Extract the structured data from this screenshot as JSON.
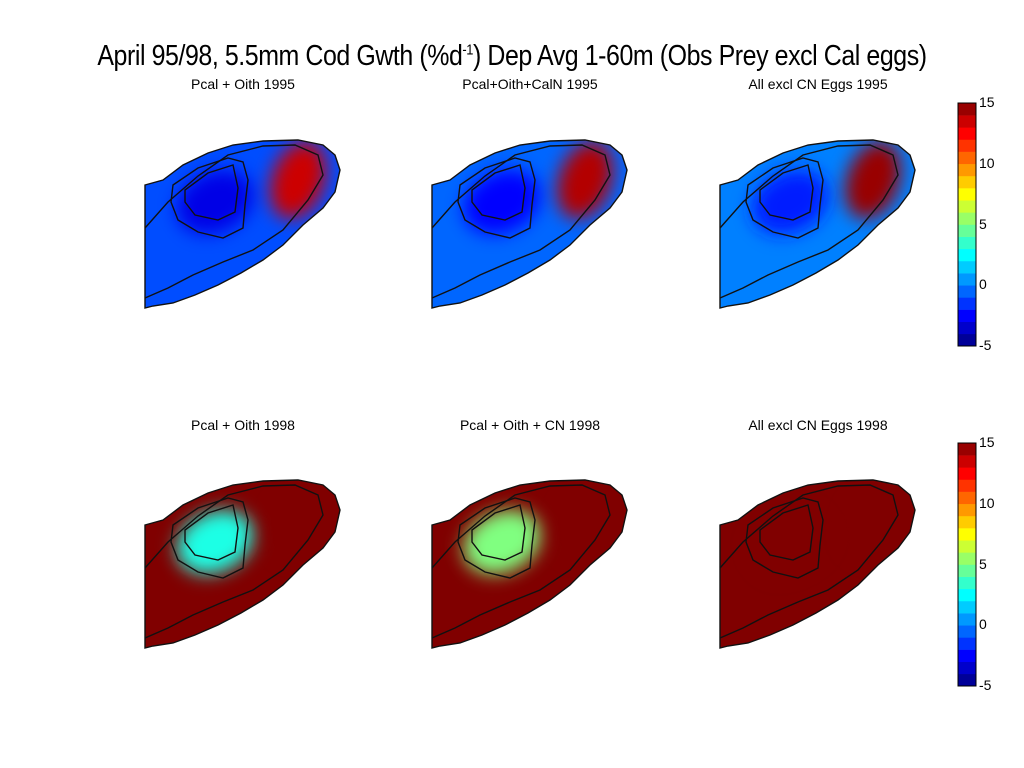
{
  "figure": {
    "title_pre": "April 95/98, 5.5mm Cod Gwth (%d",
    "title_sup": "-1",
    "title_post": ") Dep Avg 1-60m (Obs Prey excl Cal eggs)"
  },
  "chart_data": [
    {
      "type": "heatmap",
      "title": "Pcal + Oith 1995",
      "year": 1995,
      "clim": [
        -5,
        15
      ],
      "shallow_region_value": -1,
      "bank_edge_value": 13.5,
      "basin_value": -3,
      "colorbar_ticks": [
        -5,
        0,
        5,
        10,
        15
      ]
    },
    {
      "type": "heatmap",
      "title": "Pcal+Oith+CalN 1995",
      "year": 1995,
      "clim": [
        -5,
        15
      ],
      "shallow_region_value": -0.5,
      "bank_edge_value": 14,
      "basin_value": -2.5,
      "colorbar_ticks": [
        -5,
        0,
        5,
        10,
        15
      ]
    },
    {
      "type": "heatmap",
      "title": "All excl CN Eggs 1995",
      "year": 1995,
      "clim": [
        -5,
        15
      ],
      "shallow_region_value": 0,
      "bank_edge_value": 14.5,
      "basin_value": -2,
      "colorbar_ticks": [
        -5,
        0,
        5,
        10,
        15
      ]
    },
    {
      "type": "heatmap",
      "title": "Pcal + Oith 1998",
      "year": 1998,
      "clim": [
        -5,
        15
      ],
      "shallow_region_value": 15,
      "bank_edge_value": 15,
      "basin_value": 3,
      "colorbar_ticks": [
        -5,
        0,
        5,
        10,
        15
      ]
    },
    {
      "type": "heatmap",
      "title": "Pcal + Oith + CN 1998",
      "year": 1998,
      "clim": [
        -5,
        15
      ],
      "shallow_region_value": 15,
      "bank_edge_value": 15,
      "basin_value": 5,
      "colorbar_ticks": [
        -5,
        0,
        5,
        10,
        15
      ]
    },
    {
      "type": "heatmap",
      "title": "All excl CN Eggs 1998",
      "year": 1998,
      "clim": [
        -5,
        15
      ],
      "shallow_region_value": 15,
      "bank_edge_value": 15,
      "basin_value": 15,
      "colorbar_ticks": [
        -5,
        0,
        5,
        10,
        15
      ]
    }
  ],
  "colorbar": {
    "clim": [
      -5,
      15
    ],
    "ticks": [
      "15",
      "10",
      "5",
      "0",
      "-5"
    ],
    "levels": 20
  }
}
